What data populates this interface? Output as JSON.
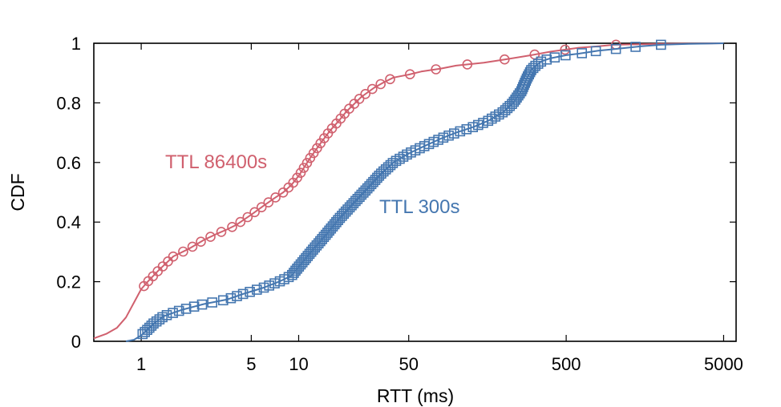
{
  "chart_data": {
    "type": "line",
    "xlabel": "RTT (ms)",
    "ylabel": "CDF",
    "xscale": "log",
    "xlim": [
      0.5,
      6000
    ],
    "ylim": [
      0,
      1
    ],
    "x_ticks": [
      1,
      5,
      10,
      50,
      500,
      5000
    ],
    "y_ticks": [
      0,
      0.2,
      0.4,
      0.6,
      0.8,
      1
    ],
    "x_tick_labels": [
      "1",
      "5",
      "10",
      "50",
      "500",
      "5000"
    ],
    "y_tick_labels": [
      "0",
      "0.2",
      "0.4",
      "0.6",
      "0.8",
      "1"
    ],
    "grid": false,
    "series": [
      {
        "name": "TTL 86400s",
        "color": "#d0606e",
        "marker": "circle",
        "x": [
          0.5,
          0.6,
          0.7,
          0.8,
          0.9,
          1.0,
          1.1,
          1.3,
          1.6,
          2.0,
          2.5,
          3.0,
          3.5,
          4.0,
          5.0,
          6.0,
          7.0,
          8.0,
          9.0,
          10.0,
          12,
          14,
          16,
          18,
          20,
          25,
          30,
          35,
          40,
          50,
          60,
          80,
          100,
          150,
          200,
          300,
          400,
          600,
          800,
          1000,
          2000,
          5000
        ],
        "y": [
          0.01,
          0.025,
          0.045,
          0.08,
          0.13,
          0.175,
          0.2,
          0.24,
          0.285,
          0.31,
          0.34,
          0.36,
          0.375,
          0.39,
          0.425,
          0.455,
          0.48,
          0.5,
          0.525,
          0.555,
          0.62,
          0.67,
          0.71,
          0.74,
          0.77,
          0.82,
          0.85,
          0.87,
          0.885,
          0.895,
          0.905,
          0.915,
          0.925,
          0.935,
          0.945,
          0.96,
          0.972,
          0.985,
          0.99,
          0.995,
          0.998,
          1.0
        ]
      },
      {
        "name": "TTL 300s",
        "color": "#4577b0",
        "marker": "square",
        "x": [
          0.8,
          0.9,
          1.0,
          1.1,
          1.2,
          1.4,
          1.8,
          2.5,
          3.5,
          4.5,
          6.0,
          7.5,
          9.0,
          10,
          12,
          15,
          18,
          22,
          27,
          33,
          40,
          50,
          60,
          80,
          100,
          130,
          160,
          200,
          230,
          260,
          280,
          300,
          320,
          350,
          400,
          500,
          600,
          800,
          1000,
          1500,
          2000,
          3000,
          5000
        ],
        "y": [
          0.0,
          0.005,
          0.02,
          0.04,
          0.06,
          0.085,
          0.105,
          0.125,
          0.14,
          0.16,
          0.18,
          0.2,
          0.22,
          0.25,
          0.3,
          0.36,
          0.41,
          0.46,
          0.51,
          0.56,
          0.6,
          0.63,
          0.65,
          0.68,
          0.7,
          0.72,
          0.74,
          0.77,
          0.8,
          0.84,
          0.88,
          0.91,
          0.925,
          0.94,
          0.95,
          0.96,
          0.965,
          0.975,
          0.98,
          0.99,
          0.995,
          0.998,
          1.0
        ]
      }
    ]
  }
}
